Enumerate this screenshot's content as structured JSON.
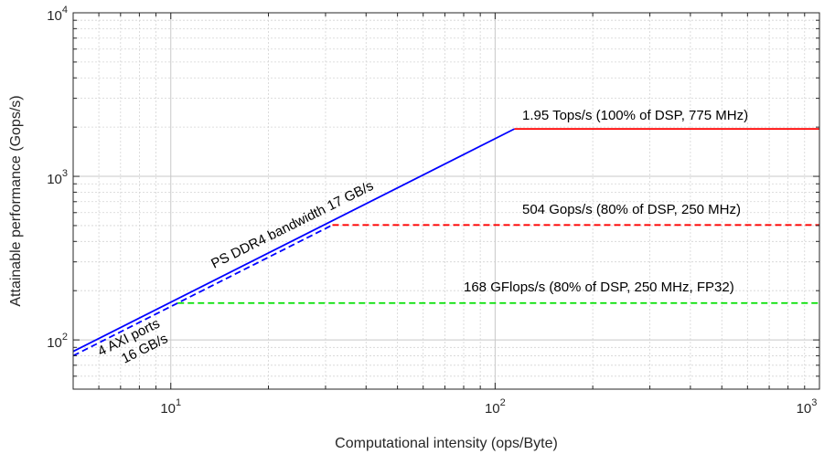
{
  "chart_data": {
    "type": "line",
    "xscale": "log",
    "yscale": "log",
    "xlim": [
      5,
      1000
    ],
    "ylim": [
      50,
      10000
    ],
    "xlabel": "Computational intensity (ops/Byte)",
    "ylabel": "Attainable performance (Gops/s)",
    "grid": true,
    "minor_grid": true,
    "x_tick_labels": [
      {
        "value": 10,
        "base": "10",
        "exp": "1"
      },
      {
        "value": 100,
        "base": "10",
        "exp": "2"
      },
      {
        "value": 1000,
        "base": "10",
        "exp": "3"
      }
    ],
    "y_tick_labels": [
      {
        "value": 100,
        "base": "10",
        "exp": "2"
      },
      {
        "value": 1000,
        "base": "10",
        "exp": "3"
      },
      {
        "value": 10000,
        "base": "10",
        "exp": "4"
      }
    ],
    "series": [
      {
        "points": [
          [
            5,
            85
          ],
          [
            114.7,
            1950
          ]
        ],
        "color": "#0000ff",
        "dash": "solid"
      },
      {
        "points": [
          [
            114.7,
            1950
          ],
          [
            1000,
            1950
          ]
        ],
        "color": "#ff0000",
        "dash": "solid"
      },
      {
        "points": [
          [
            5,
            80
          ],
          [
            31.5,
            504
          ]
        ],
        "color": "#0000ff",
        "dash": "dashed"
      },
      {
        "points": [
          [
            31.5,
            504
          ],
          [
            1000,
            504
          ]
        ],
        "color": "#ff0000",
        "dash": "dashed"
      },
      {
        "points": [
          [
            10.5,
            168
          ],
          [
            1000,
            168
          ]
        ],
        "color": "#00e000",
        "dash": "dashed"
      }
    ],
    "annotations": [
      {
        "text": "1.95 Tops/s (100% of DSP, 775 MHz)"
      },
      {
        "text": "504 Gops/s (80% of DSP, 250 MHz)"
      },
      {
        "text": "168 GFlops/s (80% of DSP, 250 MHz, FP32)"
      },
      {
        "text": "PS DDR4 bandwidth 17 GB/s"
      },
      {
        "text": "4 AXI ports"
      },
      {
        "text": "16 GB/s"
      }
    ]
  }
}
